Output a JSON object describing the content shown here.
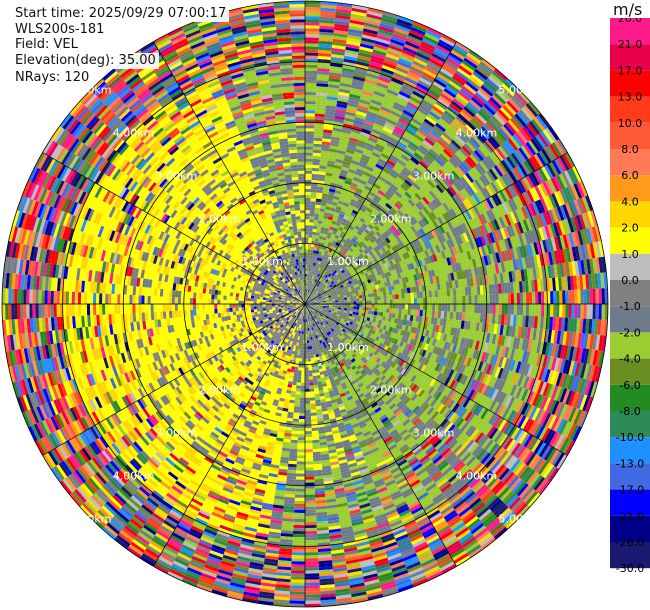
{
  "info": {
    "start_time": "Start time: 2025/09/29 07:00:17",
    "instrument": "WLS200s-181",
    "field": "Field: VEL",
    "elevation": "Elevation(deg): 35.00",
    "nrays": "NRays: 120"
  },
  "colorbar": {
    "unit": "m/s",
    "bins": [
      {
        "label": "26.0",
        "color": "#ff1a8c"
      },
      {
        "label": "21.0",
        "color": "#e8004a"
      },
      {
        "label": "17.0",
        "color": "#ff0000"
      },
      {
        "label": "13.0",
        "color": "#ff3b1a"
      },
      {
        "label": "10.0",
        "color": "#ff5a36"
      },
      {
        "label": "8.0",
        "color": "#ff7a55"
      },
      {
        "label": "6.0",
        "color": "#ff9a1a"
      },
      {
        "label": "4.0",
        "color": "#ffd700"
      },
      {
        "label": "2.0",
        "color": "#ffff00"
      },
      {
        "label": "1.0",
        "color": "#bdbdbd"
      },
      {
        "label": "0.0",
        "color": "#808080"
      },
      {
        "label": "-1.0",
        "color": "#6e7b8b"
      },
      {
        "label": "-2.0",
        "color": "#9acd32"
      },
      {
        "label": "-4.0",
        "color": "#6b8e23"
      },
      {
        "label": "-6.0",
        "color": "#228b22"
      },
      {
        "label": "-8.0",
        "color": "#2e8b57"
      },
      {
        "label": "-10.0",
        "color": "#1e90ff"
      },
      {
        "label": "-13.0",
        "color": "#4169e1"
      },
      {
        "label": "-17.0",
        "color": "#0000ff"
      },
      {
        "label": "-21.0",
        "color": "#00008b"
      },
      {
        "label": "-26.0",
        "color": "#191970"
      },
      {
        "label": "-30.0",
        "color": ""
      }
    ]
  },
  "chart_data": {
    "type": "heatmap",
    "projection": "polar-ppi",
    "field": "VEL",
    "unit": "m/s",
    "nrays": 120,
    "range_ring_labels": [
      "1.00km",
      "2.00km",
      "3.00km",
      "4.00km",
      "5.00km"
    ],
    "max_range_km": 5.0,
    "spokes_deg": [
      0,
      30,
      60,
      90,
      120,
      150,
      180,
      210,
      240,
      270,
      300,
      330
    ],
    "inner_region_km": 3.0,
    "sectors_approx": [
      {
        "azimuth_from_deg": 10,
        "azimuth_to_deg": 160,
        "dominant_velocity_ms": -2.0
      },
      {
        "azimuth_from_deg": 190,
        "azimuth_to_deg": 340,
        "dominant_velocity_ms": 2.0
      },
      {
        "near_center_km": 1.0,
        "dominant_velocity_ms": 0.0
      }
    ],
    "outer_region": "noisy / aliased values across full colour scale"
  }
}
